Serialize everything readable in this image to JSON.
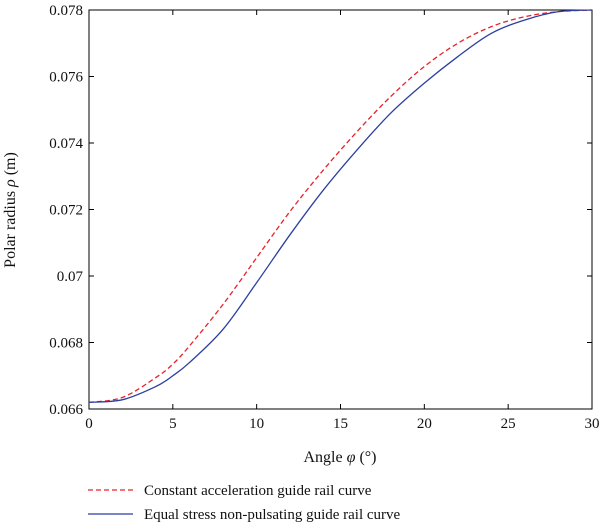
{
  "chart_data": {
    "type": "line",
    "xlabel_text": "Angle ",
    "xlabel_symbol": "φ",
    "xlabel_unit": " (°)",
    "ylabel_text": "Polar radius ",
    "ylabel_symbol": "ρ",
    "ylabel_unit": " (m)",
    "xlim": [
      0,
      30
    ],
    "ylim": [
      0.066,
      0.078
    ],
    "x_ticks": [
      "0",
      "5",
      "10",
      "15",
      "20",
      "25",
      "30"
    ],
    "y_ticks": [
      "0.066",
      "0.068",
      "0.07",
      "0.072",
      "0.074",
      "0.076",
      "0.078"
    ],
    "grid": false,
    "legend_position": "bottom",
    "series": [
      {
        "name": "Constant acceleration guide rail curve",
        "color": "#e8202a",
        "style": "dashed",
        "x": [
          0,
          2,
          4,
          5,
          6,
          8,
          10,
          12,
          14,
          16,
          18,
          20,
          22,
          24,
          26,
          28,
          30
        ],
        "y": [
          0.0662,
          0.06635,
          0.06695,
          0.06735,
          0.0679,
          0.06915,
          0.07055,
          0.07195,
          0.0732,
          0.07435,
          0.0754,
          0.0763,
          0.077,
          0.0775,
          0.0778,
          0.07795,
          0.078
        ]
      },
      {
        "name": "Equal stress non-pulsating guide rail curve",
        "color": "#2b3fa0",
        "style": "solid",
        "x": [
          0,
          2,
          4,
          5,
          6,
          8,
          10,
          12,
          14,
          16,
          18,
          20,
          22,
          24,
          26,
          28,
          30
        ],
        "y": [
          0.0662,
          0.06628,
          0.06668,
          0.067,
          0.0674,
          0.0684,
          0.0698,
          0.07125,
          0.0726,
          0.0738,
          0.0749,
          0.0758,
          0.0766,
          0.0773,
          0.0777,
          0.07795,
          0.078
        ]
      }
    ]
  }
}
